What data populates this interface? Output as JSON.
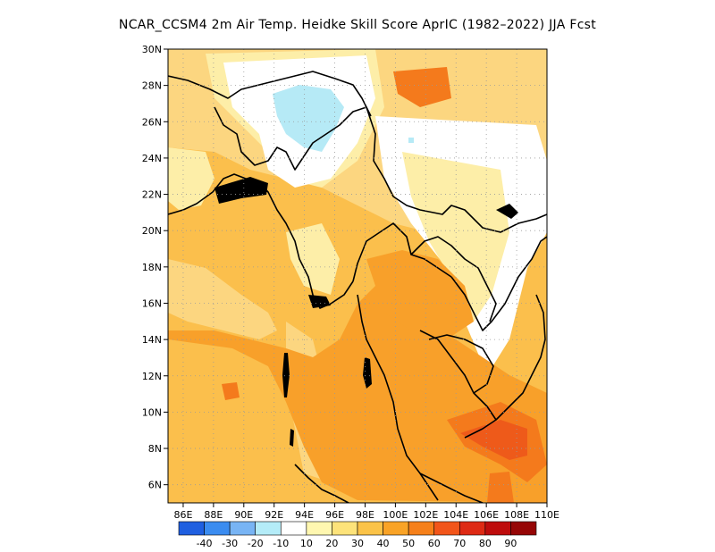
{
  "title": "NCAR_CCSM4  2m Air Temp. Heidke Skill Score AprIC (1982–2022) JJA Fcst",
  "lat_labels": [
    "30N",
    "28N",
    "26N",
    "24N",
    "22N",
    "20N",
    "18N",
    "16N",
    "14N",
    "12N",
    "10N",
    "8N",
    "6N"
  ],
  "lon_labels": [
    "86E",
    "88E",
    "90E",
    "92E",
    "94E",
    "96E",
    "98E",
    "100E",
    "102E",
    "104E",
    "106E",
    "108E",
    "110E"
  ],
  "colorbar": {
    "colors": [
      "#1f5fe0",
      "#3b8cf0",
      "#78b4f4",
      "#b4ecf8",
      "#ffffff",
      "#fff7b0",
      "#fde37a",
      "#fbc348",
      "#f9a326",
      "#f6801a",
      "#f2551a",
      "#de2a14",
      "#be0c0c",
      "#960606"
    ],
    "labels": [
      "-40",
      "-30",
      "-20",
      "-10",
      "10",
      "20",
      "30",
      "40",
      "50",
      "60",
      "70",
      "80",
      "90"
    ]
  },
  "field_colors": {
    "pale": "#fdeea8",
    "light": "#fcd680",
    "mid": "#fbbf4c",
    "orange": "#f8a02a",
    "deep": "#f47a1c",
    "red": "#ee5a1a",
    "cyan": "#b6eaf6"
  }
}
